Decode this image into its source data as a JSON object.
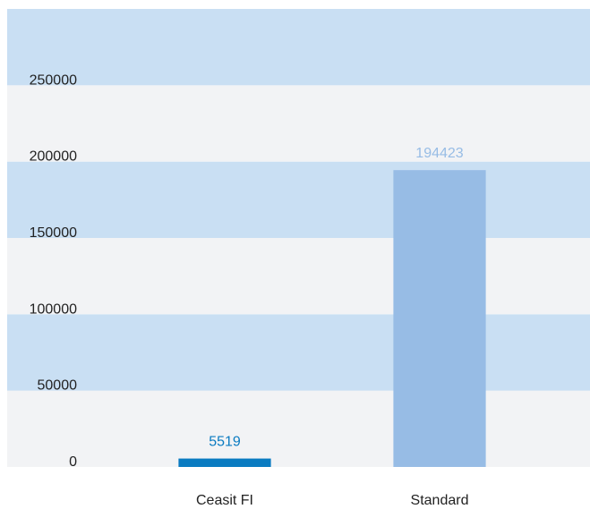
{
  "chart_data": {
    "type": "bar",
    "categories": [
      "Ceasit FI",
      "Standard"
    ],
    "values": [
      5519,
      194423
    ],
    "colors": [
      "#0a7bc1",
      "#97bce5"
    ],
    "ylim": [
      0,
      300000
    ],
    "yticks": [
      0,
      50000,
      100000,
      150000,
      200000,
      250000
    ],
    "band_colors": [
      "#f2f3f5",
      "#c9dff3"
    ]
  }
}
